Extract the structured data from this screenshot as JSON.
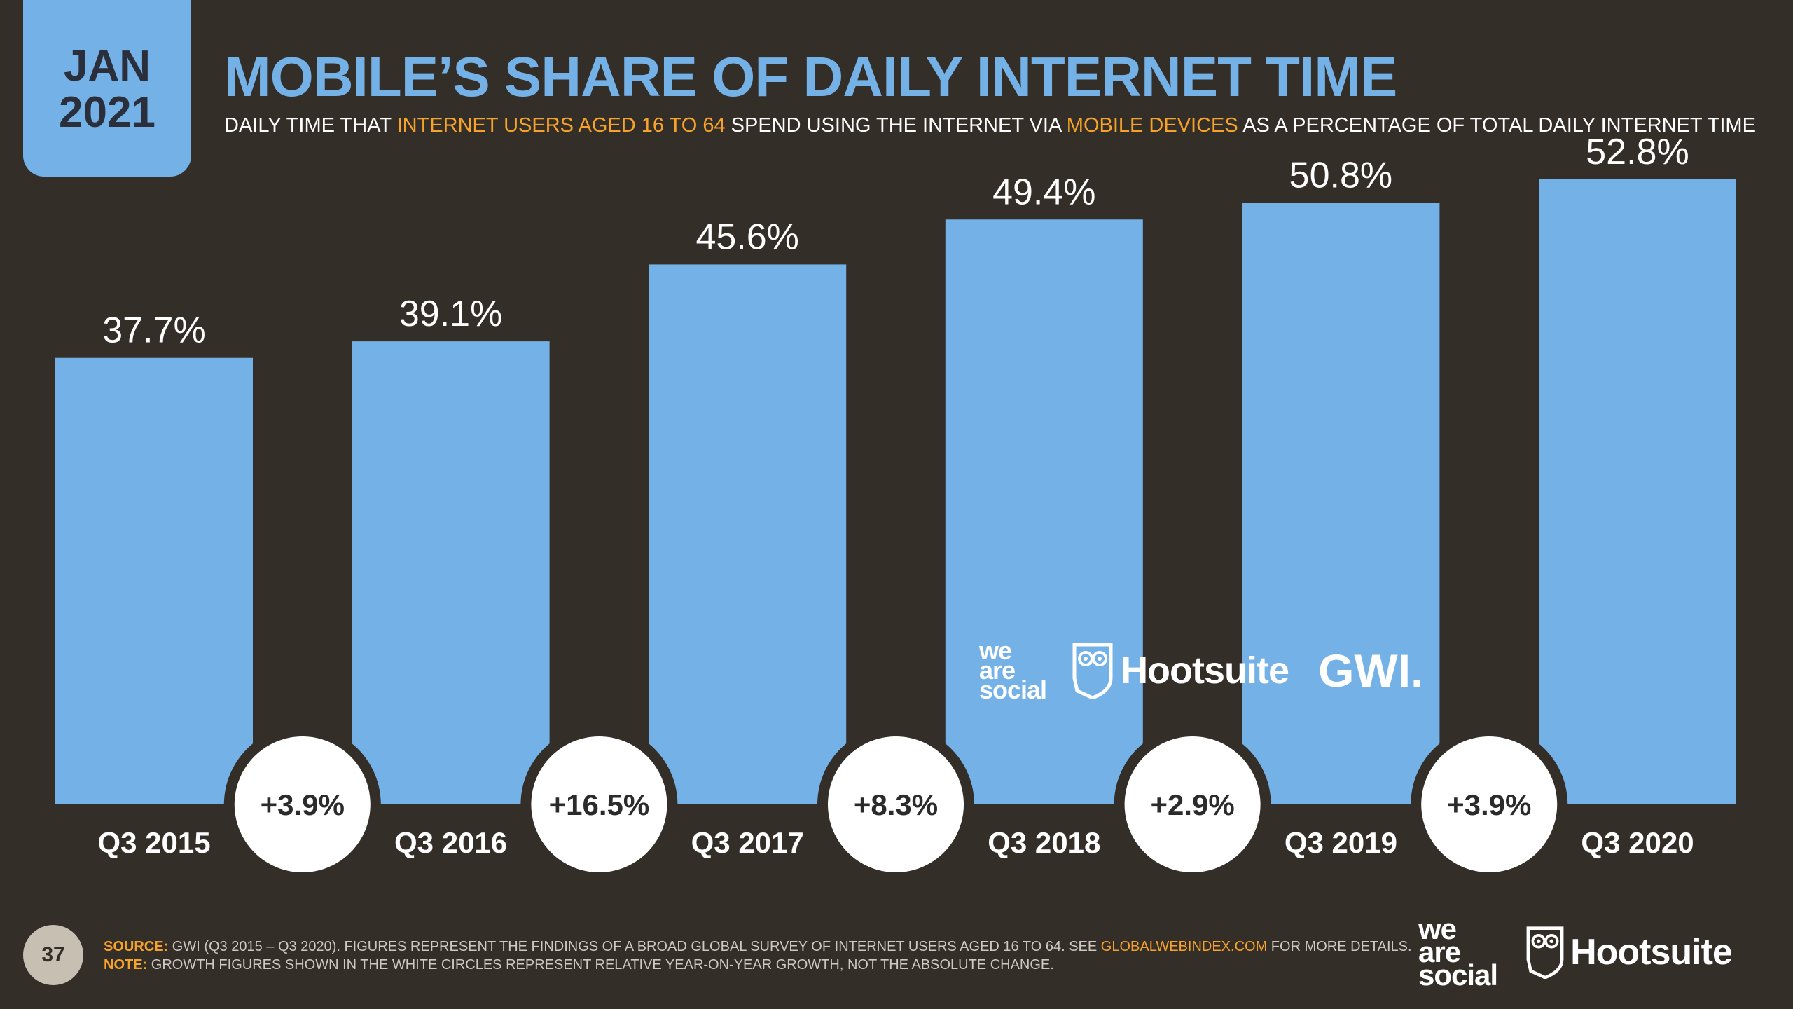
{
  "header": {
    "month": "JAN",
    "year": "2021",
    "title": "MOBILE’S SHARE OF DAILY INTERNET TIME",
    "subtitle": {
      "part1": "DAILY TIME THAT ",
      "highlight1": "INTERNET USERS AGED 16 TO 64",
      "part2": " SPEND USING THE INTERNET VIA ",
      "highlight2": "MOBILE DEVICES",
      "part3": " AS A PERCENTAGE OF TOTAL DAILY INTERNET TIME"
    }
  },
  "colors": {
    "background": "#342e29",
    "bar": "#74b1e6",
    "accent": "#f7a32b",
    "circle": "#ffffff"
  },
  "chart_data": {
    "type": "bar",
    "categories": [
      "Q3 2015",
      "Q3 2016",
      "Q3 2017",
      "Q3 2018",
      "Q3 2019",
      "Q3 2020"
    ],
    "values": [
      37.7,
      39.1,
      45.6,
      49.4,
      50.8,
      52.8
    ],
    "value_labels": [
      "37.7%",
      "39.1%",
      "45.6%",
      "49.4%",
      "50.8%",
      "52.8%"
    ],
    "growth_labels": [
      "+3.9%",
      "+16.5%",
      "+8.3%",
      "+2.9%",
      "+3.9%"
    ],
    "ylim": [
      0,
      57
    ],
    "grid": false,
    "legend": "none"
  },
  "logos": {
    "wearesocial": [
      "we",
      "are",
      "social"
    ],
    "hootsuite": "Hootsuite",
    "gwi": "GWI."
  },
  "footer": {
    "page_number": "37",
    "source_label": "SOURCE:",
    "source_text": " GWI (Q3 2015 – Q3 2020). FIGURES REPRESENT THE FINDINGS OF A BROAD GLOBAL SURVEY OF INTERNET USERS AGED 16 TO 64. SEE ",
    "source_link": "GLOBALWEBINDEX.COM",
    "source_end": " FOR MORE DETAILS.",
    "note_label": "NOTE:",
    "note_text": " GROWTH FIGURES SHOWN IN THE WHITE CIRCLES REPRESENT RELATIVE YEAR-ON-YEAR GROWTH, NOT THE ABSOLUTE CHANGE."
  }
}
